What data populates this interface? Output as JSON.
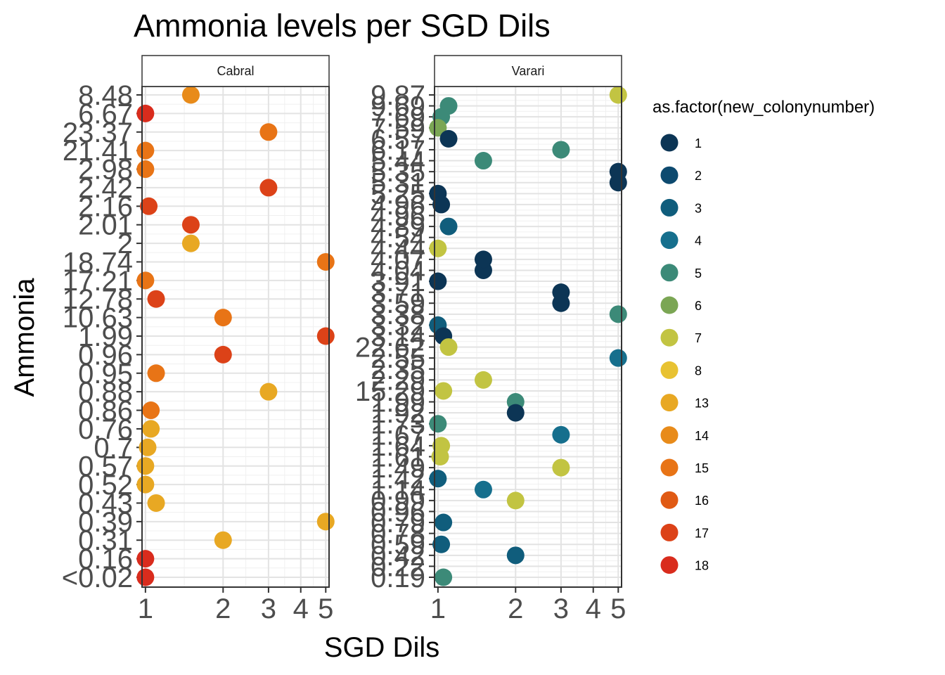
{
  "chart_data": {
    "type": "scatter",
    "title": "Ammonia levels per SGD Dils",
    "xlabel": "SGD Dils",
    "ylabel": "Ammonia",
    "x_scale": "log",
    "x_ticks": [
      1,
      2,
      3,
      4,
      5
    ],
    "xlim": [
      0.97,
      5.15
    ],
    "grid": true,
    "legend": {
      "title": "as.factor(new_colonynumber)",
      "position": "right",
      "items": [
        {
          "label": "1",
          "color": "#0c3555"
        },
        {
          "label": "2",
          "color": "#0d4a6f"
        },
        {
          "label": "3",
          "color": "#105d7c"
        },
        {
          "label": "4",
          "color": "#166f8d"
        },
        {
          "label": "5",
          "color": "#3c8a78"
        },
        {
          "label": "6",
          "color": "#7ba654"
        },
        {
          "label": "7",
          "color": "#c2c442"
        },
        {
          "label": "8",
          "color": "#e8c232"
        },
        {
          "label": "13",
          "color": "#e8a823"
        },
        {
          "label": "14",
          "color": "#e88b1a"
        },
        {
          "label": "15",
          "color": "#e87416"
        },
        {
          "label": "16",
          "color": "#e05a14"
        },
        {
          "label": "17",
          "color": "#dc4218"
        },
        {
          "label": "18",
          "color": "#d92c1d"
        }
      ]
    },
    "panels": [
      {
        "strip": "Cabral",
        "y_categories": [
          "8.48",
          "6.67",
          "23.37",
          "21.41",
          "2.98",
          "2.42",
          "2.16",
          "2.01",
          "2",
          "18.74",
          "17.21",
          "12.78",
          "10.63",
          "1.99",
          "0.96",
          "0.95",
          "0.88",
          "0.86",
          "0.76",
          "0.7",
          "0.57",
          "0.52",
          "0.43",
          "0.39",
          "0.31",
          "0.16",
          "<0.02"
        ],
        "points": [
          {
            "x": 1.5,
            "y": "8.48",
            "colony": "14"
          },
          {
            "x": 1.0,
            "y": "6.67",
            "colony": "18"
          },
          {
            "x": 3.0,
            "y": "23.37",
            "colony": "15"
          },
          {
            "x": 1.0,
            "y": "21.41",
            "colony": "15"
          },
          {
            "x": 1.0,
            "y": "2.98",
            "colony": "15"
          },
          {
            "x": 3.0,
            "y": "2.42",
            "colony": "17"
          },
          {
            "x": 1.03,
            "y": "2.16",
            "colony": "17"
          },
          {
            "x": 1.5,
            "y": "2.01",
            "colony": "17"
          },
          {
            "x": 1.5,
            "y": "2",
            "colony": "13"
          },
          {
            "x": 5.0,
            "y": "18.74",
            "colony": "15"
          },
          {
            "x": 1.0,
            "y": "17.21",
            "colony": "15"
          },
          {
            "x": 1.1,
            "y": "12.78",
            "colony": "17"
          },
          {
            "x": 2.0,
            "y": "10.63",
            "colony": "15"
          },
          {
            "x": 5.0,
            "y": "1.99",
            "colony": "17"
          },
          {
            "x": 2.0,
            "y": "0.96",
            "colony": "17"
          },
          {
            "x": 1.1,
            "y": "0.95",
            "colony": "15"
          },
          {
            "x": 3.0,
            "y": "0.88",
            "colony": "13"
          },
          {
            "x": 1.05,
            "y": "0.86",
            "colony": "15"
          },
          {
            "x": 1.05,
            "y": "0.76",
            "colony": "13"
          },
          {
            "x": 1.02,
            "y": "0.7",
            "colony": "13"
          },
          {
            "x": 1.0,
            "y": "0.57",
            "colony": "13"
          },
          {
            "x": 1.0,
            "y": "0.52",
            "colony": "13"
          },
          {
            "x": 1.1,
            "y": "0.43",
            "colony": "13"
          },
          {
            "x": 5.0,
            "y": "0.39",
            "colony": "13"
          },
          {
            "x": 2.0,
            "y": "0.31",
            "colony": "13"
          },
          {
            "x": 1.0,
            "y": "0.16",
            "colony": "18"
          },
          {
            "x": 1.0,
            "y": "<0.02",
            "colony": "18"
          }
        ]
      },
      {
        "strip": "Varari",
        "y_categories": [
          "9.87",
          "9.69",
          "7.69",
          "7.59",
          "6.57",
          "6.17",
          "5.44",
          "5.35",
          "5.31",
          "5.25",
          "4.96",
          "4.96",
          "4.89",
          "4.54",
          "4.44",
          "4.07",
          "4.04",
          "3.91",
          "3.71",
          "3.59",
          "3.38",
          "3.32",
          "3.14",
          "22.62",
          "2.55",
          "2.35",
          "2.29",
          "15.29",
          "1.99",
          "1.92",
          "1.73",
          "1.67",
          "1.64",
          "1.61",
          "1.49",
          "1.42",
          "1.14",
          "0.99",
          "0.96",
          "0.79",
          "0.78",
          "0.59",
          "0.42",
          "0.22",
          "0.19"
        ],
        "points": [
          {
            "x": 5.0,
            "y": "9.87",
            "colony": "7"
          },
          {
            "x": 1.1,
            "y": "9.69",
            "colony": "5"
          },
          {
            "x": 1.03,
            "y": "7.69",
            "colony": "5"
          },
          {
            "x": 1.0,
            "y": "7.59",
            "colony": "6"
          },
          {
            "x": 1.1,
            "y": "6.57",
            "colony": "1"
          },
          {
            "x": 3.0,
            "y": "6.17",
            "colony": "5"
          },
          {
            "x": 1.5,
            "y": "5.44",
            "colony": "5"
          },
          {
            "x": 5.0,
            "y": "5.35",
            "colony": "1"
          },
          {
            "x": 5.0,
            "y": "5.31",
            "colony": "1"
          },
          {
            "x": 1.0,
            "y": "5.25",
            "colony": "1"
          },
          {
            "x": 1.03,
            "y": "4.96",
            "colony": "1"
          },
          {
            "x": 1.1,
            "y": "4.89",
            "colony": "3"
          },
          {
            "x": 1.0,
            "y": "4.44",
            "colony": "7"
          },
          {
            "x": 1.5,
            "y": "4.04",
            "colony": "1"
          },
          {
            "x": 1.5,
            "y": "4.07",
            "colony": "1"
          },
          {
            "x": 1.0,
            "y": "3.91",
            "colony": "1"
          },
          {
            "x": 3.0,
            "y": "3.71",
            "colony": "1"
          },
          {
            "x": 3.0,
            "y": "3.59",
            "colony": "1"
          },
          {
            "x": 5.0,
            "y": "3.38",
            "colony": "5"
          },
          {
            "x": 1.0,
            "y": "3.32",
            "colony": "3"
          },
          {
            "x": 1.05,
            "y": "3.14",
            "colony": "1"
          },
          {
            "x": 1.1,
            "y": "22.62",
            "colony": "7"
          },
          {
            "x": 5.0,
            "y": "2.55",
            "colony": "4"
          },
          {
            "x": 1.5,
            "y": "2.29",
            "colony": "7"
          },
          {
            "x": 1.05,
            "y": "15.29",
            "colony": "7"
          },
          {
            "x": 2.0,
            "y": "1.99",
            "colony": "5"
          },
          {
            "x": 2.0,
            "y": "1.92",
            "colony": "1"
          },
          {
            "x": 1.0,
            "y": "1.73",
            "colony": "5"
          },
          {
            "x": 3.0,
            "y": "1.67",
            "colony": "4"
          },
          {
            "x": 1.03,
            "y": "1.64",
            "colony": "7"
          },
          {
            "x": 1.02,
            "y": "1.61",
            "colony": "7"
          },
          {
            "x": 3.0,
            "y": "1.49",
            "colony": "7"
          },
          {
            "x": 1.0,
            "y": "1.42",
            "colony": "3"
          },
          {
            "x": 1.5,
            "y": "1.14",
            "colony": "4"
          },
          {
            "x": 2.0,
            "y": "0.99",
            "colony": "7"
          },
          {
            "x": 1.05,
            "y": "0.79",
            "colony": "3"
          },
          {
            "x": 1.03,
            "y": "0.59",
            "colony": "3"
          },
          {
            "x": 2.0,
            "y": "0.42",
            "colony": "3"
          },
          {
            "x": 1.05,
            "y": "0.19",
            "colony": "5"
          }
        ]
      }
    ]
  }
}
